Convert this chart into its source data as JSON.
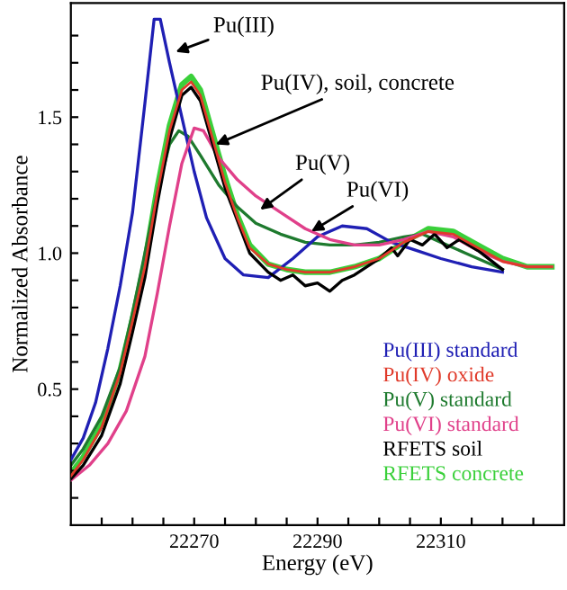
{
  "chart_data": {
    "type": "line",
    "xlabel": "Energy (eV)",
    "ylabel": "Normalized Absorbance",
    "xlim": [
      22250,
      22330
    ],
    "ylim": [
      0,
      1.92
    ],
    "xticks": [
      {
        "value": 22255,
        "label": null
      },
      {
        "value": 22260,
        "label": null
      },
      {
        "value": 22265,
        "label": null
      },
      22270,
      {
        "value": 22275,
        "label": null
      },
      {
        "value": 22280,
        "label": null
      },
      {
        "value": 22285,
        "label": null
      },
      22290,
      {
        "value": 22295,
        "label": null
      },
      {
        "value": 22300,
        "label": null
      },
      {
        "value": 22305,
        "label": null
      },
      22310,
      {
        "value": 22315,
        "label": null
      },
      {
        "value": 22320,
        "label": null
      },
      {
        "value": 22325,
        "label": null
      }
    ],
    "yticks": [
      {
        "value": 0.1,
        "label": null
      },
      {
        "value": 0.2,
        "label": null
      },
      {
        "value": 0.3,
        "label": null
      },
      {
        "value": 0.4,
        "label": null
      },
      {
        "value": 0.5,
        "label": "0.5"
      },
      {
        "value": 0.6,
        "label": null
      },
      {
        "value": 0.7,
        "label": null
      },
      {
        "value": 0.8,
        "label": null
      },
      {
        "value": 0.9,
        "label": null
      },
      {
        "value": 1.0,
        "label": "1.0"
      },
      {
        "value": 1.1,
        "label": null
      },
      {
        "value": 1.2,
        "label": null
      },
      {
        "value": 1.3,
        "label": null
      },
      {
        "value": 1.4,
        "label": null
      },
      {
        "value": 1.5,
        "label": "1.5"
      },
      {
        "value": 1.6,
        "label": null
      },
      {
        "value": 1.7,
        "label": null
      },
      {
        "value": 1.8,
        "label": null
      }
    ],
    "legend": "bottom right",
    "grid": false,
    "marker": "none",
    "line_style": "solid",
    "annotations": [
      {
        "text": "Pu(III)",
        "x": 22267,
        "y": 1.74
      },
      {
        "text": "Pu(IV), soil, concrete",
        "x": 22273.5,
        "y": 1.4
      },
      {
        "text": "Pu(V)",
        "x": 22280.7,
        "y": 1.16
      },
      {
        "text": "Pu(VI)",
        "x": 22289,
        "y": 1.08
      }
    ],
    "series": [
      {
        "name": "Pu(III) standard",
        "color": "#1f1fb4",
        "x": [
          22250,
          22252,
          22254,
          22256,
          22258,
          22260,
          22262,
          22263.5,
          22264.5,
          22266,
          22268,
          22270,
          22272,
          22275,
          22278,
          22282,
          22286,
          22290,
          22294,
          22298,
          22302,
          22306,
          22310,
          22315,
          22320
        ],
        "values": [
          0.24,
          0.32,
          0.45,
          0.65,
          0.88,
          1.15,
          1.55,
          1.86,
          1.86,
          1.7,
          1.5,
          1.3,
          1.13,
          0.98,
          0.92,
          0.91,
          0.98,
          1.06,
          1.1,
          1.09,
          1.04,
          1.01,
          0.98,
          0.95,
          0.93
        ]
      },
      {
        "name": "Pu(IV) oxide",
        "color": "#e03a2a",
        "x": [
          22250,
          22252,
          22255,
          22258,
          22260,
          22262,
          22264,
          22266,
          22268,
          22269.5,
          22271,
          22273,
          22275,
          22277,
          22279,
          22282,
          22285,
          22288,
          22292,
          22296,
          22300,
          22304,
          22308,
          22312,
          22316,
          22320,
          22324,
          22328
        ],
        "values": [
          0.18,
          0.24,
          0.36,
          0.56,
          0.75,
          0.95,
          1.22,
          1.45,
          1.6,
          1.63,
          1.58,
          1.42,
          1.26,
          1.13,
          1.02,
          0.96,
          0.94,
          0.93,
          0.93,
          0.95,
          0.98,
          1.04,
          1.08,
          1.07,
          1.02,
          0.97,
          0.95,
          0.95
        ]
      },
      {
        "name": "Pu(V) standard",
        "color": "#1e7a2e",
        "x": [
          22250,
          22252,
          22255,
          22258,
          22260,
          22262,
          22264,
          22266,
          22267.5,
          22269,
          22271,
          22274,
          22277,
          22280,
          22284,
          22288,
          22292,
          22296,
          22300,
          22304,
          22307,
          22310,
          22314,
          22318,
          22320
        ],
        "values": [
          0.22,
          0.28,
          0.4,
          0.58,
          0.78,
          1.0,
          1.22,
          1.4,
          1.45,
          1.43,
          1.36,
          1.25,
          1.17,
          1.11,
          1.07,
          1.04,
          1.03,
          1.03,
          1.04,
          1.06,
          1.07,
          1.04,
          1.0,
          0.96,
          0.94
        ]
      },
      {
        "name": "Pu(VI) standard",
        "color": "#e0408a",
        "x": [
          22250,
          22253,
          22256,
          22259,
          22262,
          22264,
          22266,
          22268,
          22270,
          22271.5,
          22274,
          22277,
          22280,
          22284,
          22288,
          22292,
          22296,
          22300,
          22304,
          22308,
          22312,
          22316,
          22320,
          22324,
          22328
        ],
        "values": [
          0.165,
          0.22,
          0.3,
          0.42,
          0.62,
          0.85,
          1.1,
          1.33,
          1.46,
          1.45,
          1.35,
          1.27,
          1.21,
          1.15,
          1.09,
          1.05,
          1.03,
          1.03,
          1.05,
          1.08,
          1.06,
          1.01,
          0.97,
          0.95,
          0.95
        ]
      },
      {
        "name": "RFETS soil",
        "color": "#000000",
        "x": [
          22250,
          22252,
          22255,
          22258,
          22260,
          22262,
          22264,
          22266,
          22268,
          22269.5,
          22271,
          22273,
          22275,
          22277,
          22279,
          22282,
          22284,
          22286,
          22288,
          22290,
          22292,
          22294,
          22296,
          22298,
          22300,
          22302,
          22303,
          22305,
          22307,
          22309,
          22311,
          22313,
          22316,
          22320
        ],
        "values": [
          0.17,
          0.22,
          0.33,
          0.52,
          0.71,
          0.91,
          1.18,
          1.42,
          1.58,
          1.61,
          1.56,
          1.4,
          1.24,
          1.12,
          1.0,
          0.93,
          0.9,
          0.92,
          0.88,
          0.89,
          0.86,
          0.9,
          0.92,
          0.95,
          0.98,
          1.02,
          0.99,
          1.05,
          1.03,
          1.07,
          1.02,
          1.05,
          1.01,
          0.94
        ]
      },
      {
        "name": "RFETS concrete",
        "color": "#3ad03a",
        "x": [
          22250,
          22252,
          22255,
          22258,
          22260,
          22262,
          22264,
          22266,
          22268,
          22269.5,
          22271,
          22273,
          22275,
          22277,
          22279,
          22282,
          22285,
          22288,
          22292,
          22296,
          22300,
          22304,
          22308,
          22312,
          22316,
          22320,
          22324,
          22328
        ],
        "values": [
          0.19,
          0.25,
          0.37,
          0.57,
          0.76,
          0.97,
          1.24,
          1.47,
          1.62,
          1.65,
          1.6,
          1.44,
          1.28,
          1.14,
          1.03,
          0.96,
          0.94,
          0.93,
          0.93,
          0.95,
          0.98,
          1.04,
          1.09,
          1.08,
          1.03,
          0.98,
          0.95,
          0.95
        ]
      }
    ]
  }
}
